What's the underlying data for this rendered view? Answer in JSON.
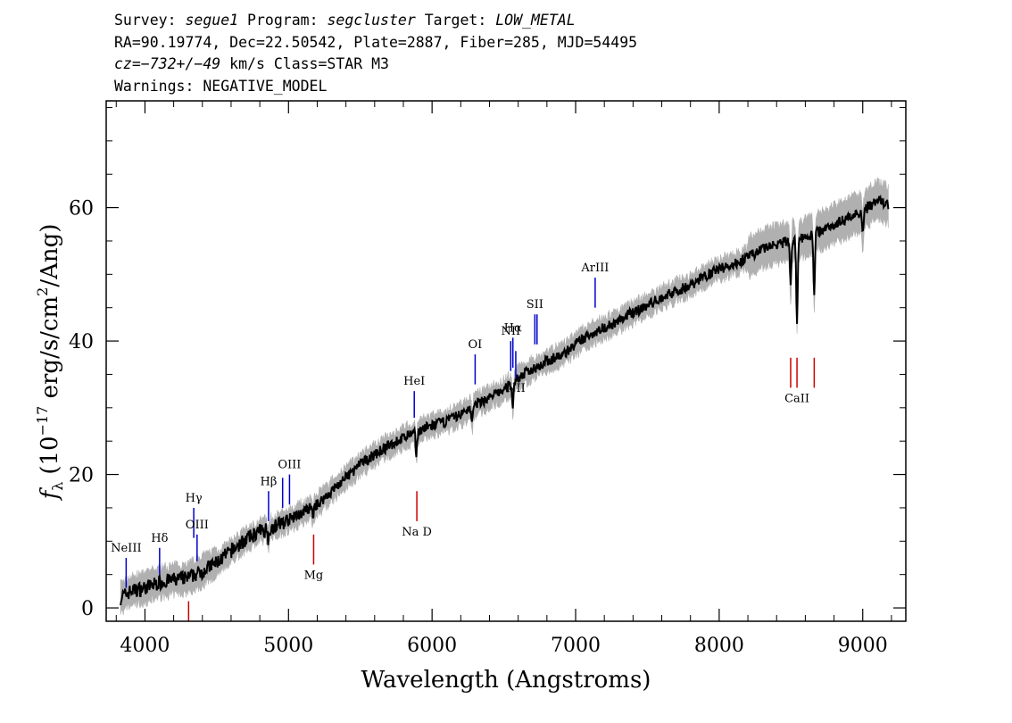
{
  "header": {
    "line1": {
      "survey_label": "Survey:",
      "survey": "segue1",
      "program_label": "Program:",
      "program": "segcluster",
      "target_label": "Target:",
      "target": "LOW_METAL"
    },
    "line2": "RA=90.19774, Dec=22.50542, Plate=2887, Fiber=285, MJD=54495",
    "line3": {
      "cz": "cz=−732+/−49",
      "rest": "km/s Class=STAR M3"
    },
    "line4": "Warnings: NEGATIVE_MODEL"
  },
  "chart_data": {
    "type": "line",
    "xlabel": "Wavelength (Angstroms)",
    "ylabel": {
      "symbol": "f",
      "subscript": "λ",
      "pre": "(10",
      "exp": "−17",
      "post": " erg/s/cm",
      "exp2": "2",
      "end": "/Ang)"
    },
    "xlim": [
      3730,
      9300
    ],
    "ylim": [
      -2,
      76
    ],
    "xticks": [
      4000,
      5000,
      6000,
      7000,
      8000,
      9000
    ],
    "yticks": [
      0,
      20,
      40,
      60
    ],
    "xtick_labels": [
      "4000",
      "5000",
      "6000",
      "7000",
      "8000",
      "9000"
    ],
    "ytick_labels": [
      "0",
      "20",
      "40",
      "60"
    ],
    "grid": false,
    "series": [
      {
        "color": "#000000",
        "x": [
          3830,
          3900,
          4000,
          4100,
          4200,
          4300,
          4400,
          4500,
          4600,
          4700,
          4800,
          4850,
          4900,
          5000,
          5100,
          5200,
          5300,
          5400,
          5500,
          5600,
          5700,
          5800,
          5900,
          6000,
          6100,
          6200,
          6300,
          6400,
          6500,
          6550,
          6600,
          6700,
          6800,
          6900,
          7000,
          7100,
          7200,
          7300,
          7400,
          7500,
          7600,
          7700,
          7800,
          7900,
          8000,
          8100,
          8200,
          8300,
          8400,
          8500,
          8600,
          8700,
          8800,
          8900,
          9000,
          9100,
          9180
        ],
        "y": [
          1.5,
          2.5,
          3,
          3.8,
          4.2,
          4.5,
          5.5,
          6.8,
          8.5,
          10.2,
          11.5,
          11.8,
          12.2,
          13.2,
          14.3,
          15.5,
          17.5,
          19.5,
          21.5,
          23,
          24.3,
          25.5,
          26.5,
          27.3,
          28,
          29,
          30.5,
          31.5,
          32.7,
          33.5,
          34.5,
          35.8,
          37,
          37.8,
          39.5,
          41,
          42,
          43,
          44.3,
          45.3,
          46.5,
          47.5,
          48.3,
          49.8,
          50.8,
          51.5,
          52.5,
          53.8,
          54.5,
          55,
          55.5,
          56.5,
          57.5,
          58.5,
          59.5,
          61,
          60.5
        ]
      }
    ],
    "annotations": [
      {
        "label": "NeIII",
        "x": 3869,
        "y1": 3,
        "y2": 7.5,
        "color": "#0000cc",
        "label_pos": "above"
      },
      {
        "label": "Hδ",
        "x": 4102,
        "y1": 5,
        "y2": 9,
        "color": "#0000cc",
        "label_pos": "above"
      },
      {
        "label": "Hγ",
        "x": 4340,
        "y1": 10.5,
        "y2": 15,
        "color": "#0000cc",
        "label_pos": "above"
      },
      {
        "label": "OIII",
        "x": 4363,
        "y1": 7,
        "y2": 11,
        "color": "#0000cc",
        "label_pos": "above"
      },
      {
        "label": "Hβ",
        "x": 4861,
        "y1": 13,
        "y2": 17.5,
        "color": "#0000cc",
        "label_pos": "above"
      },
      {
        "label": "OIII",
        "x": 4959,
        "y1": 15,
        "y2": 19.5,
        "color": "#0000cc",
        "label_pos": "none"
      },
      {
        "label": "OIII",
        "x": 5007,
        "y1": 15.5,
        "y2": 20,
        "color": "#0000cc",
        "label_pos": "above"
      },
      {
        "label": "HeI",
        "x": 5876,
        "y1": 28.5,
        "y2": 32.5,
        "color": "#0000cc",
        "label_pos": "above"
      },
      {
        "label": "OI",
        "x": 6300,
        "y1": 33.5,
        "y2": 38,
        "color": "#0000cc",
        "label_pos": "above"
      },
      {
        "label": "NII",
        "x": 6548,
        "y1": 35.5,
        "y2": 40,
        "color": "#0000cc",
        "label_pos": "above"
      },
      {
        "label": "Hα",
        "x": 6563,
        "y1": 36,
        "y2": 40.5,
        "color": "#0000cc",
        "label_pos": "above"
      },
      {
        "label": "NII",
        "x": 6583,
        "y1": 34.5,
        "y2": 38.5,
        "color": "#0000cc",
        "label_pos": "below"
      },
      {
        "label": "SII",
        "x": 6716,
        "y1": 39.5,
        "y2": 44,
        "color": "#0000cc",
        "label_pos": "above"
      },
      {
        "label": "SII",
        "x": 6731,
        "y1": 39.5,
        "y2": 44,
        "color": "#0000cc",
        "label_pos": "none"
      },
      {
        "label": "ArIII",
        "x": 7136,
        "y1": 45,
        "y2": 49.5,
        "color": "#0000cc",
        "label_pos": "above"
      },
      {
        "label": "",
        "x": 4304,
        "y1": -2,
        "y2": 1,
        "color": "#cc0000",
        "label_pos": "none"
      },
      {
        "label": "Mg",
        "x": 5175,
        "y1": 6.5,
        "y2": 11,
        "color": "#cc0000",
        "label_pos": "below"
      },
      {
        "label": "Na D",
        "x": 5894,
        "y1": 13,
        "y2": 17.5,
        "color": "#cc0000",
        "label_pos": "below"
      },
      {
        "label": "CaII",
        "x": 8498,
        "y1": 33,
        "y2": 37.5,
        "color": "#cc0000",
        "label_pos": "none"
      },
      {
        "label": "CaII",
        "x": 8542,
        "y1": 33,
        "y2": 37.5,
        "color": "#cc0000",
        "label_pos": "below"
      },
      {
        "label": "CaII",
        "x": 8662,
        "y1": 33,
        "y2": 37.5,
        "color": "#cc0000",
        "label_pos": "none"
      }
    ],
    "absorption_features": [
      {
        "x": 5890,
        "depth": 3.5
      },
      {
        "x": 6280,
        "depth": 2.5
      },
      {
        "x": 6563,
        "depth": 3.5
      },
      {
        "x": 8498,
        "depth": 7
      },
      {
        "x": 8542,
        "depth": 12
      },
      {
        "x": 8662,
        "depth": 9
      },
      {
        "x": 9000,
        "depth": 3
      },
      {
        "x": 4860,
        "depth": 1.5
      },
      {
        "x": 5170,
        "depth": 1.5
      }
    ]
  },
  "colors": {
    "spectrum": "#000000",
    "error_band": "#b0b0b0",
    "emission_line": "#0000cc",
    "absorption_line": "#cc0000"
  }
}
